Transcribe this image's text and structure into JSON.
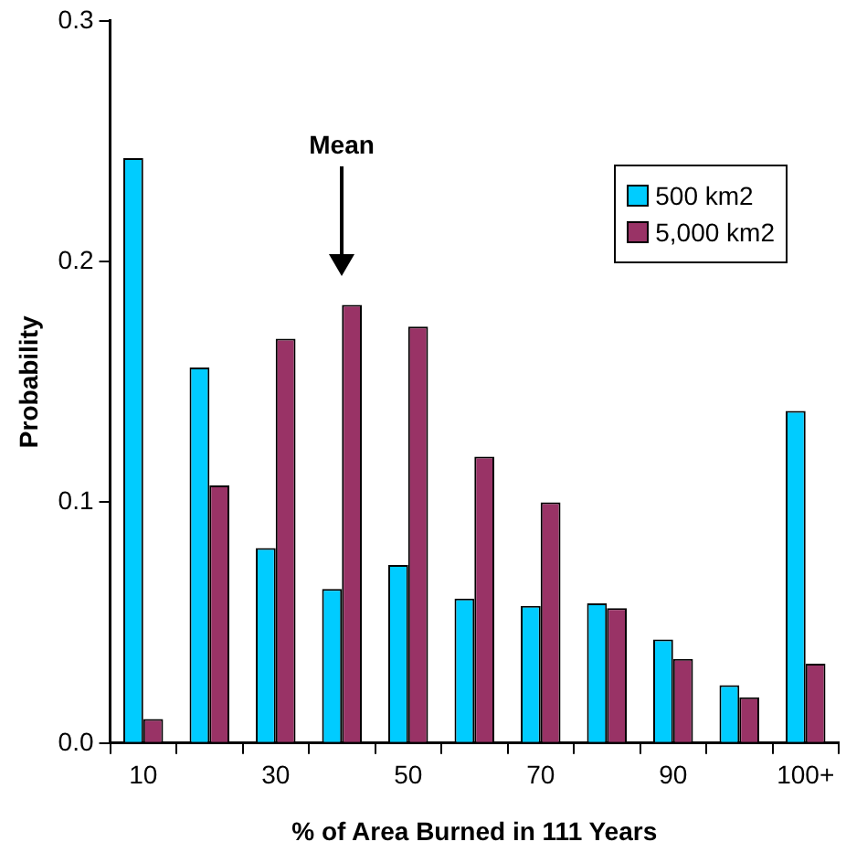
{
  "chart_data": {
    "type": "bar",
    "xlabel": "% of Area Burned in 111 Years",
    "ylabel": "Probability",
    "categories": [
      "10",
      null,
      "30",
      null,
      "50",
      null,
      "70",
      null,
      "90",
      null,
      "100+"
    ],
    "series": [
      {
        "name": "500 km2",
        "color": "#00ccff",
        "values": [
          0.243,
          0.156,
          0.081,
          0.064,
          0.074,
          0.06,
          0.057,
          0.058,
          0.043,
          0.024,
          0.138
        ]
      },
      {
        "name": "5,000 km2",
        "color": "#993366",
        "values": [
          0.01,
          0.107,
          0.168,
          0.182,
          0.173,
          0.119,
          0.1,
          0.056,
          0.035,
          0.019,
          0.033
        ]
      }
    ],
    "ylim": [
      0,
      0.3
    ],
    "yticks": [
      {
        "value": 0,
        "label": "0.0"
      },
      0.1,
      0.2,
      0.3
    ],
    "legend": "top right",
    "annotations": [
      "Mean"
    ]
  }
}
